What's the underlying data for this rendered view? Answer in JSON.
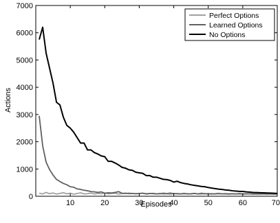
{
  "chart_data": {
    "type": "line",
    "title": "",
    "xlabel": "Episodes",
    "ylabel": "Actions",
    "xlim": [
      0,
      70
    ],
    "ylim": [
      0,
      7000
    ],
    "x_ticks": [
      10,
      20,
      30,
      40,
      50,
      60,
      70
    ],
    "y_ticks": [
      0,
      1000,
      2000,
      3000,
      4000,
      5000,
      6000,
      7000
    ],
    "x_tick_labels": [
      "10",
      "20",
      "30",
      "40",
      "50",
      "60",
      "70"
    ],
    "y_tick_labels": [
      "0",
      "1000",
      "2000",
      "3000",
      "4000",
      "5000",
      "6000",
      "7000"
    ],
    "grid": false,
    "legend_position": "top-right",
    "series": [
      {
        "name": "Perfect Options",
        "color": "#a0a0a0",
        "x": [
          1,
          2,
          3,
          4,
          5,
          6,
          7,
          8,
          9,
          10,
          11,
          12,
          13,
          14,
          15,
          16,
          17,
          18,
          19,
          20,
          21,
          22,
          23,
          24,
          25,
          26,
          27,
          28,
          29,
          30,
          31,
          32,
          33,
          34,
          35,
          36,
          37,
          38,
          39,
          40,
          41,
          42,
          43,
          44,
          45,
          46,
          47,
          48,
          49,
          50,
          51,
          52,
          53,
          54,
          55,
          56,
          57,
          58,
          59,
          60,
          61,
          62,
          63,
          64,
          65,
          66,
          67,
          68,
          69,
          70
        ],
        "y": [
          110,
          85,
          140,
          95,
          120,
          80,
          105,
          130,
          90,
          110,
          75,
          100,
          125,
          85,
          95,
          115,
          80,
          105,
          90,
          120,
          85,
          100,
          110,
          80,
          95,
          120,
          90,
          105,
          85,
          100,
          115,
          80,
          95,
          110,
          90,
          85,
          120,
          95,
          130,
          85,
          100,
          90,
          110,
          80,
          95,
          105,
          85,
          115,
          90,
          100,
          80,
          95,
          110,
          85,
          100,
          90,
          95,
          80,
          105,
          90,
          95,
          85,
          100,
          80,
          90,
          95,
          85,
          100,
          90,
          95
        ]
      },
      {
        "name": "Learned Options",
        "color": "#606060",
        "x": [
          1,
          2,
          3,
          4,
          5,
          6,
          7,
          8,
          9,
          10,
          11,
          12,
          13,
          14,
          15,
          16,
          17,
          18,
          19,
          20,
          21,
          22,
          23,
          24,
          25,
          26,
          27,
          28,
          29,
          30,
          31,
          32,
          33,
          34,
          35,
          36,
          37,
          38,
          39,
          40,
          41,
          42,
          43,
          44,
          45,
          46,
          47,
          48,
          49,
          50,
          51,
          52,
          53,
          54,
          55,
          56,
          57,
          58,
          59,
          60,
          61,
          62,
          63,
          64,
          65,
          66,
          67,
          68,
          69,
          70
        ],
        "y": [
          2950,
          1850,
          1250,
          980,
          780,
          620,
          540,
          470,
          420,
          350,
          330,
          270,
          250,
          220,
          200,
          170,
          160,
          140,
          160,
          110,
          130,
          120,
          140,
          170,
          110,
          100,
          110,
          100,
          95,
          100,
          110,
          90,
          100,
          95,
          85,
          100,
          90,
          95,
          85,
          100,
          90,
          85,
          95,
          90,
          85,
          100,
          85,
          90,
          95,
          85,
          90,
          85,
          95,
          90,
          85,
          80,
          90,
          85,
          90,
          80,
          85,
          90,
          80,
          85,
          80,
          85,
          80,
          85,
          80,
          80
        ]
      },
      {
        "name": "No Options",
        "color": "#000000",
        "x": [
          1,
          2,
          3,
          4,
          5,
          6,
          7,
          8,
          9,
          10,
          11,
          12,
          13,
          14,
          15,
          16,
          17,
          18,
          19,
          20,
          21,
          22,
          23,
          24,
          25,
          26,
          27,
          28,
          29,
          30,
          31,
          32,
          33,
          34,
          35,
          36,
          37,
          38,
          39,
          40,
          41,
          42,
          43,
          44,
          45,
          46,
          47,
          48,
          49,
          50,
          51,
          52,
          53,
          54,
          55,
          56,
          57,
          58,
          59,
          60,
          61,
          62,
          63,
          64,
          65,
          66,
          67,
          68,
          69,
          70
        ],
        "y": [
          5750,
          6200,
          5250,
          4700,
          4150,
          3450,
          3350,
          2900,
          2600,
          2500,
          2350,
          2150,
          1950,
          1950,
          1700,
          1700,
          1600,
          1550,
          1480,
          1450,
          1280,
          1280,
          1220,
          1150,
          1060,
          1030,
          970,
          950,
          880,
          860,
          840,
          760,
          760,
          700,
          700,
          660,
          620,
          610,
          580,
          520,
          550,
          500,
          470,
          450,
          420,
          400,
          380,
          360,
          350,
          320,
          300,
          280,
          260,
          250,
          230,
          220,
          200,
          190,
          180,
          175,
          160,
          150,
          140,
          135,
          130,
          125,
          120,
          115,
          110,
          105
        ]
      }
    ]
  }
}
